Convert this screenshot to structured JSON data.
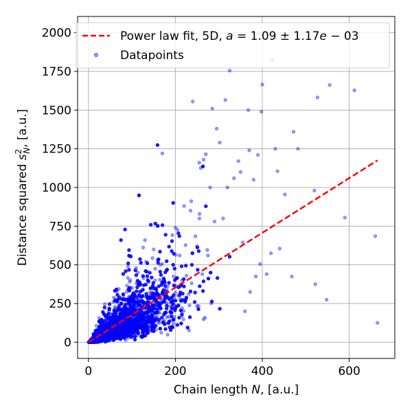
{
  "chart_data": {
    "type": "scatter",
    "xlabel_prefix": "Chain length ",
    "xlabel_var": "N",
    "xlabel_suffix": ", [a.u.]",
    "ylabel_prefix": "Distance squared ",
    "ylabel_var": "s",
    "ylabel_sup": "2",
    "ylabel_sub": "N",
    "ylabel_suffix": ", [a.u.]",
    "xlim": [
      -25,
      705
    ],
    "ylim": [
      -105,
      2105
    ],
    "xticks": [
      0,
      200,
      400,
      600
    ],
    "yticks": [
      0,
      250,
      500,
      750,
      1000,
      1250,
      1500,
      1750,
      2000
    ],
    "xtick_labels": [
      "0",
      "200",
      "400",
      "600"
    ],
    "ytick_labels": [
      "0",
      "250",
      "500",
      "750",
      "1000",
      "1250",
      "1500",
      "1750",
      "2000"
    ],
    "grid": true,
    "legend_position": "top-left",
    "series": [
      {
        "name": "Power law fit, 5D, a = 1.09 ± 1.17e−03",
        "kind": "line",
        "style": "dashed",
        "color": "#ff0000",
        "x": [
          0,
          665
        ],
        "y": [
          0,
          1175
        ]
      },
      {
        "name": "Datapoints",
        "kind": "scatter",
        "color": "#0000ff",
        "alpha": 0.4,
        "points": [
          [
            665,
            125
          ],
          [
            660,
            685
          ],
          [
            612,
            1628
          ],
          [
            590,
            805
          ],
          [
            555,
            1662
          ],
          [
            548,
            275
          ],
          [
            527,
            1582
          ],
          [
            522,
            375
          ],
          [
            520,
            980
          ],
          [
            482,
            1250
          ],
          [
            472,
            1360
          ],
          [
            468,
            425
          ],
          [
            452,
            955
          ],
          [
            440,
            605
          ],
          [
            435,
            1105
          ],
          [
            430,
            1250
          ],
          [
            423,
            1822
          ],
          [
            420,
            575
          ],
          [
            410,
            440
          ],
          [
            400,
            1665
          ],
          [
            398,
            1490
          ],
          [
            395,
            505
          ],
          [
            390,
            1210
          ],
          [
            385,
            425
          ],
          [
            380,
            1050
          ],
          [
            372,
            325
          ],
          [
            370,
            1240
          ],
          [
            368,
            1500
          ],
          [
            360,
            200
          ],
          [
            355,
            645
          ],
          [
            350,
            1100
          ],
          [
            345,
            1170
          ],
          [
            335,
            1060
          ],
          [
            325,
            1755
          ],
          [
            320,
            1000
          ],
          [
            315,
            1565
          ],
          [
            310,
            800
          ],
          [
            302,
            1290
          ],
          [
            295,
            1380
          ],
          [
            290,
            780
          ],
          [
            285,
            1510
          ],
          [
            280,
            1000
          ],
          [
            275,
            560
          ],
          [
            270,
            1215
          ],
          [
            265,
            1180
          ],
          [
            262,
            440
          ],
          [
            255,
            1160
          ],
          [
            250,
            620
          ],
          [
            240,
            1555
          ],
          [
            235,
            850
          ],
          [
            220,
            880
          ],
          [
            210,
            560
          ],
          [
            200,
            740
          ],
          [
            190,
            280
          ],
          [
            170,
            1220
          ],
          [
            165,
            500
          ],
          [
            150,
            600
          ],
          [
            130,
            660
          ],
          [
            110,
            480
          ],
          [
            95,
            390
          ]
        ]
      }
    ],
    "fit_line": {
      "x": [
        0,
        665
      ],
      "y": [
        0,
        1175
      ]
    }
  },
  "legend": {
    "fit_prefix": "Power law fit, 5D, ",
    "fit_math": "a = 1.09 ± 1.17e−03",
    "fit_var": "a",
    "fit_eq": " = 1.09 ± 1.17",
    "fit_exp_var": "e",
    "fit_tail": " − 03",
    "scatter_label": "Datapoints"
  },
  "colors": {
    "fit": "#ff0000",
    "points": "#0000ff",
    "grid": "#b0b0b0",
    "axes": "#000000"
  },
  "dense_cloud": {
    "count": 6000,
    "seed": 12345
  }
}
